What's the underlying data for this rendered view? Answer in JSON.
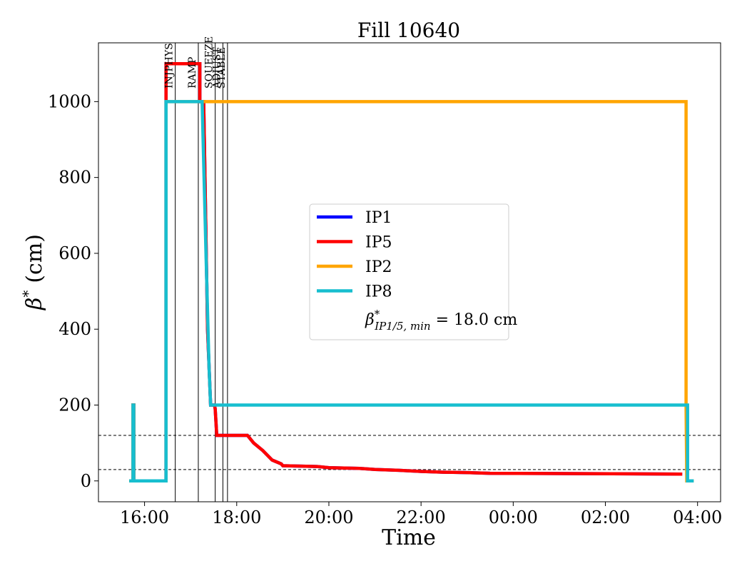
{
  "chart_data": {
    "type": "line",
    "title": "Fill 10640",
    "xlabel": "Time",
    "ylabel_symbol": "β",
    "ylabel_sup": "*",
    "ylabel_unit": "(cm)",
    "xlim": [
      "15:00",
      "04:30"
    ],
    "ylim": [
      -55,
      1155
    ],
    "xticks": [
      "16:00",
      "18:00",
      "20:00",
      "22:00",
      "00:00",
      "02:00",
      "04:00"
    ],
    "yticks": [
      0,
      200,
      400,
      600,
      800,
      1000
    ],
    "grid": false,
    "legend_position": "center",
    "phases": [
      {
        "label": "INJPHYS",
        "time": "16:40"
      },
      {
        "label": "RAMP",
        "time": "17:10"
      },
      {
        "label": "SQUEEZE",
        "time": "17:32"
      },
      {
        "label": "ADJUST",
        "time": "17:42"
      },
      {
        "label": "STABLE",
        "time": "17:48"
      }
    ],
    "hlines": [
      120,
      30
    ],
    "series": [
      {
        "name": "IP1",
        "color": "#0000ff",
        "points": [
          [
            "15:40",
            0
          ],
          [
            "15:45",
            0
          ],
          [
            "15:45",
            200
          ],
          [
            "15:46",
            200
          ],
          [
            "15:46",
            0
          ],
          [
            "16:28",
            0
          ],
          [
            "16:28",
            1100
          ],
          [
            "17:12",
            1100
          ],
          [
            "17:12",
            1000
          ],
          [
            "17:17",
            1000
          ],
          [
            "17:22",
            400
          ],
          [
            "17:26",
            200
          ],
          [
            "17:31",
            200
          ],
          [
            "17:32",
            190
          ],
          [
            "17:34",
            120
          ],
          [
            "18:14",
            120
          ],
          [
            "18:22",
            100
          ],
          [
            "18:34",
            80
          ],
          [
            "18:46",
            55
          ],
          [
            "18:58",
            45
          ],
          [
            "19:00",
            40
          ],
          [
            "19:45",
            38
          ],
          [
            "20:00",
            35
          ],
          [
            "20:40",
            33
          ],
          [
            "21:00",
            30
          ],
          [
            "21:30",
            28
          ],
          [
            "22:00",
            25
          ],
          [
            "22:30",
            23
          ],
          [
            "23:00",
            22
          ],
          [
            "23:30",
            20
          ],
          [
            "03:40",
            18
          ]
        ]
      },
      {
        "name": "IP5",
        "color": "#ff0000",
        "points": [
          [
            "15:40",
            0
          ],
          [
            "15:45",
            0
          ],
          [
            "15:45",
            200
          ],
          [
            "15:46",
            200
          ],
          [
            "15:46",
            0
          ],
          [
            "16:28",
            0
          ],
          [
            "16:28",
            1100
          ],
          [
            "17:12",
            1100
          ],
          [
            "17:12",
            1000
          ],
          [
            "17:17",
            1000
          ],
          [
            "17:22",
            400
          ],
          [
            "17:26",
            200
          ],
          [
            "17:31",
            200
          ],
          [
            "17:32",
            190
          ],
          [
            "17:34",
            120
          ],
          [
            "18:14",
            120
          ],
          [
            "18:22",
            100
          ],
          [
            "18:34",
            80
          ],
          [
            "18:46",
            55
          ],
          [
            "18:58",
            45
          ],
          [
            "19:00",
            40
          ],
          [
            "19:45",
            38
          ],
          [
            "20:00",
            35
          ],
          [
            "20:40",
            33
          ],
          [
            "21:00",
            30
          ],
          [
            "21:30",
            28
          ],
          [
            "22:00",
            25
          ],
          [
            "22:30",
            23
          ],
          [
            "23:00",
            22
          ],
          [
            "23:30",
            20
          ],
          [
            "03:40",
            18
          ]
        ]
      },
      {
        "name": "IP2",
        "color": "#ffa500",
        "points": [
          [
            "15:40",
            0
          ],
          [
            "15:45",
            0
          ],
          [
            "15:45",
            200
          ],
          [
            "15:46",
            200
          ],
          [
            "15:46",
            0
          ],
          [
            "16:28",
            0
          ],
          [
            "16:28",
            1000
          ],
          [
            "03:45",
            1000
          ],
          [
            "03:45",
            200
          ],
          [
            "03:46",
            0
          ],
          [
            "03:55",
            0
          ]
        ]
      },
      {
        "name": "IP8",
        "color": "#17becf",
        "points": [
          [
            "15:40",
            0
          ],
          [
            "15:45",
            0
          ],
          [
            "15:45",
            200
          ],
          [
            "15:46",
            200
          ],
          [
            "15:46",
            0
          ],
          [
            "16:28",
            0
          ],
          [
            "16:28",
            1000
          ],
          [
            "17:15",
            1000
          ],
          [
            "17:20",
            600
          ],
          [
            "17:24",
            300
          ],
          [
            "17:26",
            200
          ],
          [
            "03:47",
            200
          ],
          [
            "03:47",
            0
          ],
          [
            "03:55",
            0
          ]
        ]
      }
    ],
    "annotation": {
      "symbol": "β",
      "sup": "*",
      "sub": "IP1/5, min",
      "text": " = 18.0 cm"
    }
  }
}
